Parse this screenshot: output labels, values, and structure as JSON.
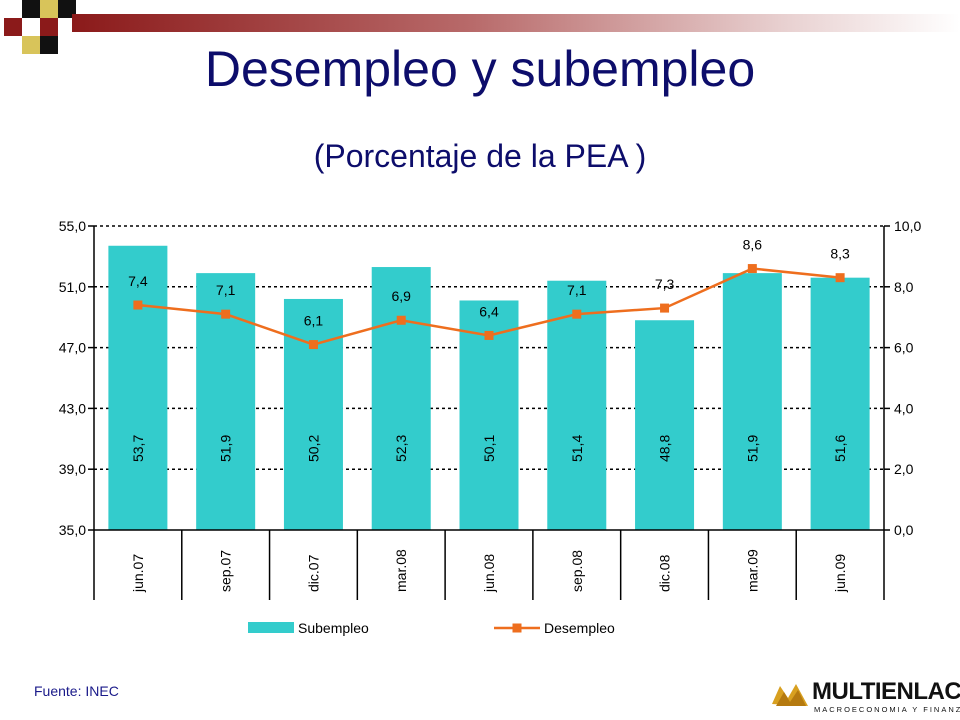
{
  "header": {
    "title": "Desempleo y subempleo",
    "subtitle": "(Porcentaje de la PEA )"
  },
  "footer": {
    "source": "Fuente: INEC",
    "logo_text": "MULTIENLACE",
    "logo_subtext": "MACROECONOMIA Y FINANZAS"
  },
  "colors": {
    "bar": "#33cccc",
    "line": "#ee6e1e",
    "title": "#0d0d6b",
    "band": "#8b1a1a"
  },
  "chart_data": {
    "type": "bar",
    "categories": [
      "jun.07",
      "sep.07",
      "dic.07",
      "mar.08",
      "jun.08",
      "sep.08",
      "dic.08",
      "mar.09",
      "jun.09"
    ],
    "series": [
      {
        "name": "Subempleo",
        "type": "bar",
        "axis": "left",
        "values": [
          53.7,
          51.9,
          50.2,
          52.3,
          50.1,
          51.4,
          48.8,
          51.9,
          51.6
        ],
        "labels": [
          "53,7",
          "51,9",
          "50,2",
          "52,3",
          "50,1",
          "51,4",
          "48,8",
          "51,9",
          "51,6"
        ]
      },
      {
        "name": "Desempleo",
        "type": "line",
        "axis": "right",
        "values": [
          7.4,
          7.1,
          6.1,
          6.9,
          6.4,
          7.1,
          7.3,
          8.6,
          8.3
        ],
        "labels": [
          "7,4",
          "7,1",
          "6,1",
          "6,9",
          "6,4",
          "7,1",
          "7,3",
          "8,6",
          "8,3"
        ]
      }
    ],
    "y_left": {
      "range": [
        35,
        55
      ],
      "ticks": [
        55,
        51,
        47,
        43,
        39,
        35
      ],
      "tick_labels": [
        "55,0",
        "51,0",
        "47,0",
        "43,0",
        "39,0",
        "35,0"
      ]
    },
    "y_right": {
      "range": [
        0,
        10
      ],
      "ticks": [
        10,
        8,
        6,
        4,
        2,
        0
      ],
      "tick_labels": [
        "10,0",
        "8,0",
        "6,0",
        "4,0",
        "2,0",
        "0,0"
      ]
    },
    "grid": "dashed-horizontal",
    "legend_position": "bottom"
  }
}
